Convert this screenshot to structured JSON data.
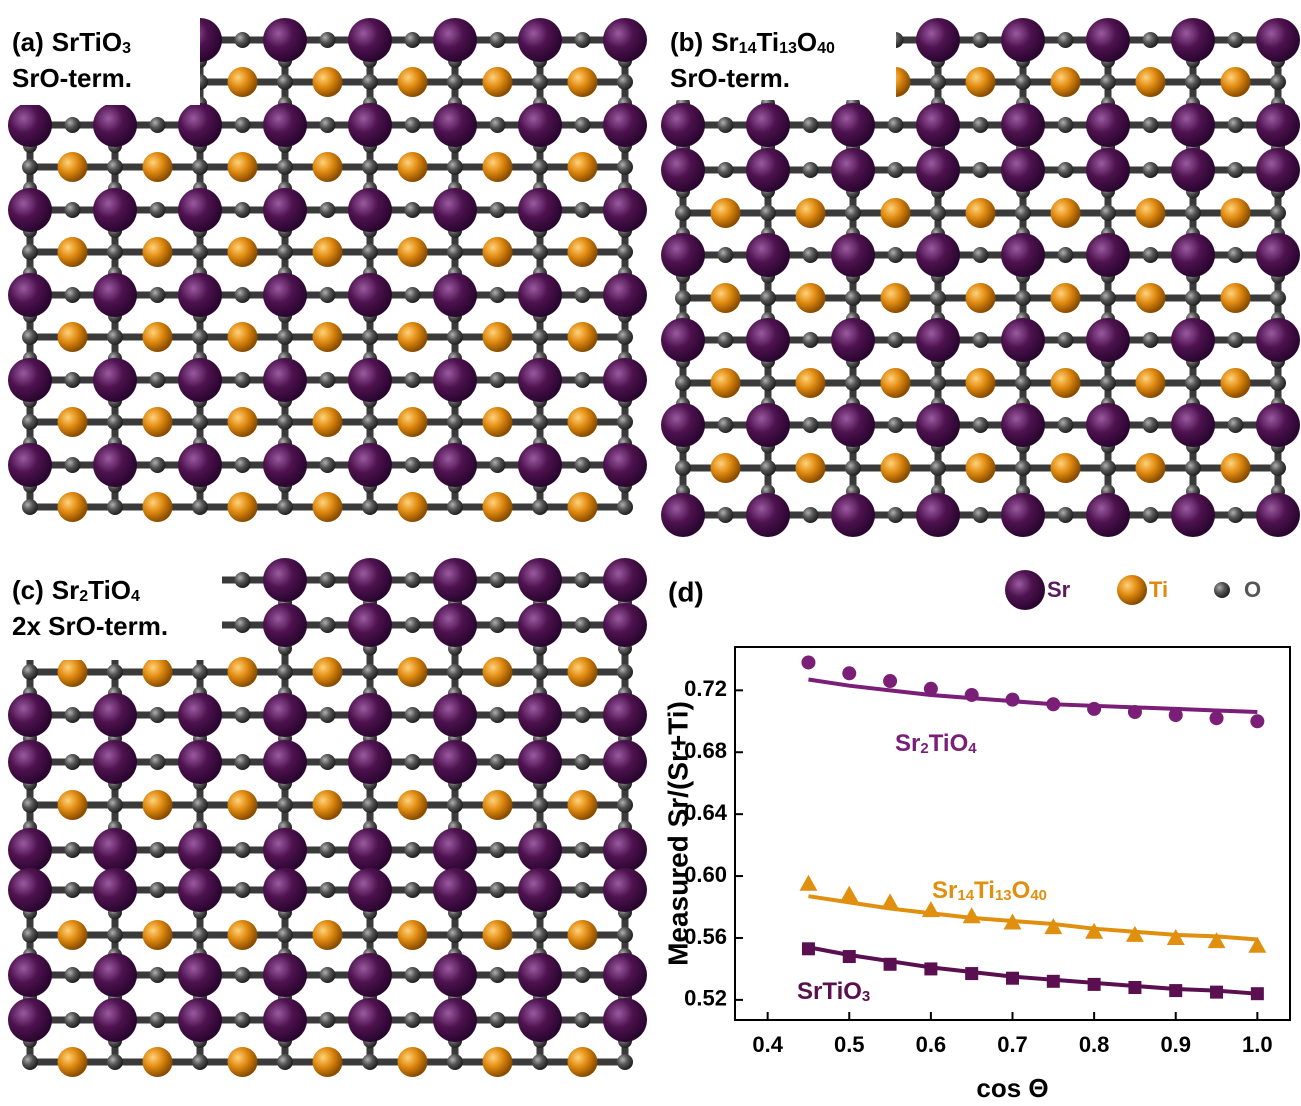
{
  "panels": [
    {
      "label": "(a)",
      "formula": "SrTiO3",
      "termination": "SrO-term."
    },
    {
      "label": "(b)",
      "formula": "Sr14Ti13O40",
      "termination": "SrO-term."
    },
    {
      "label": "(c)",
      "formula": "Sr2TiO4",
      "termination": "2x SrO-term."
    }
  ],
  "atom_legend": [
    {
      "label": "Sr",
      "color": "#5a1a5e"
    },
    {
      "label": "Ti",
      "color": "#e08a10"
    },
    {
      "label": "O",
      "color": "#555555"
    }
  ],
  "chart_data": {
    "type": "scatter",
    "panel_label": "(d)",
    "x_label": "cos Θ",
    "y_label": "Measured Sr/(Sr+Ti)",
    "x": [
      0.45,
      0.5,
      0.55,
      0.6,
      0.65,
      0.7,
      0.75,
      0.8,
      0.85,
      0.9,
      0.95,
      1.0
    ],
    "xlim": [
      0.36,
      1.04
    ],
    "ylim": [
      0.507,
      0.748
    ],
    "xticks": [
      0.4,
      0.5,
      0.6,
      0.7,
      0.8,
      0.9,
      {
        "value": 1,
        "label": "1.0"
      }
    ],
    "yticks": [
      0.52,
      0.56,
      {
        "value": 0.6,
        "label": "0.60"
      },
      0.64,
      0.68,
      0.72
    ],
    "series": [
      {
        "name": "Sr2TiO4",
        "color": "#7a1e78",
        "marker": "circle",
        "values": [
          0.738,
          0.731,
          0.726,
          0.721,
          0.717,
          0.714,
          0.711,
          0.708,
          0.706,
          0.704,
          0.702,
          0.7
        ],
        "fit": [
          0.727,
          0.723,
          0.72,
          0.717,
          0.715,
          0.713,
          0.711,
          0.71,
          0.709,
          0.708,
          0.707,
          0.706
        ]
      },
      {
        "name": "Sr14Ti13O40",
        "color": "#e0900e",
        "marker": "triangle",
        "values": [
          0.595,
          0.588,
          0.583,
          0.578,
          0.574,
          0.57,
          0.567,
          0.564,
          0.562,
          0.56,
          0.558,
          0.555
        ],
        "fit": [
          0.587,
          0.583,
          0.579,
          0.576,
          0.573,
          0.571,
          0.569,
          0.566,
          0.564,
          0.562,
          0.561,
          0.559
        ]
      },
      {
        "name": "SrTiO3",
        "color": "#5a1050",
        "marker": "square",
        "values": [
          0.553,
          0.548,
          0.543,
          0.54,
          0.537,
          0.534,
          0.532,
          0.53,
          0.528,
          0.526,
          0.525,
          0.524
        ],
        "fit": [
          0.554,
          0.549,
          0.545,
          0.541,
          0.538,
          0.535,
          0.533,
          0.531,
          0.529,
          0.527,
          0.526,
          0.524
        ]
      }
    ]
  }
}
